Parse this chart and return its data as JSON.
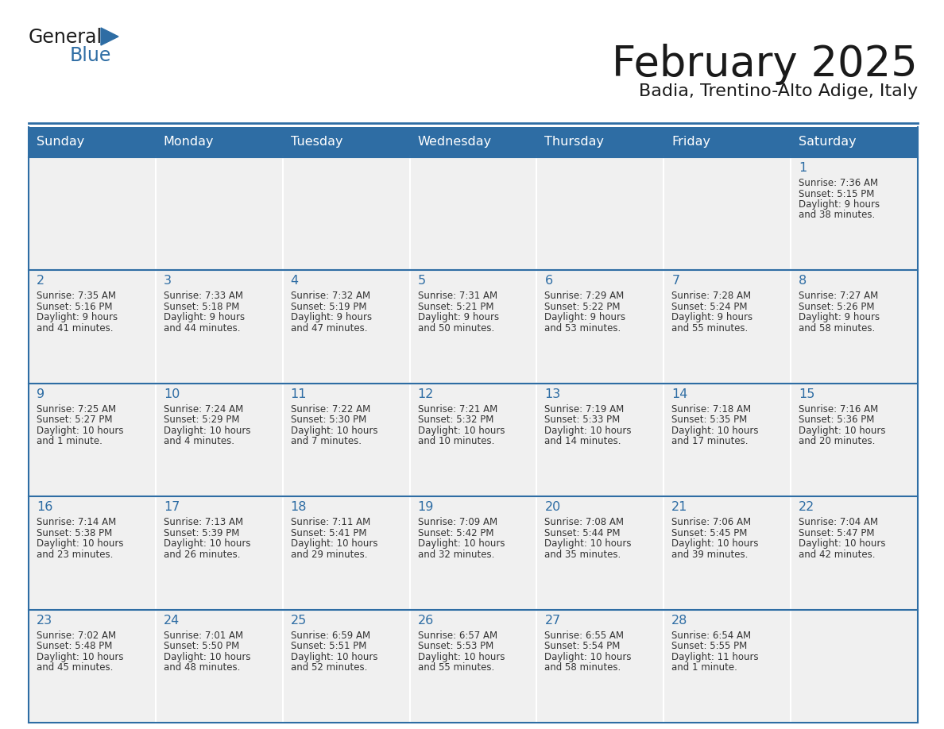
{
  "title": "February 2025",
  "subtitle": "Badia, Trentino-Alto Adige, Italy",
  "days_of_week": [
    "Sunday",
    "Monday",
    "Tuesday",
    "Wednesday",
    "Thursday",
    "Friday",
    "Saturday"
  ],
  "header_bg": "#2E6DA4",
  "header_text": "#FFFFFF",
  "cell_bg": "#F0F0F0",
  "border_color": "#2E6DA4",
  "day_num_color": "#2E6DA4",
  "cell_text_color": "#333333",
  "logo_general_color": "#1a1a1a",
  "logo_blue_color": "#2E6DA4",
  "weeks": [
    [
      null,
      null,
      null,
      null,
      null,
      null,
      1
    ],
    [
      2,
      3,
      4,
      5,
      6,
      7,
      8
    ],
    [
      9,
      10,
      11,
      12,
      13,
      14,
      15
    ],
    [
      16,
      17,
      18,
      19,
      20,
      21,
      22
    ],
    [
      23,
      24,
      25,
      26,
      27,
      28,
      null
    ]
  ],
  "cell_data": {
    "1": {
      "sunrise": "7:36 AM",
      "sunset": "5:15 PM",
      "daylight": "9 hours\nand 38 minutes."
    },
    "2": {
      "sunrise": "7:35 AM",
      "sunset": "5:16 PM",
      "daylight": "9 hours\nand 41 minutes."
    },
    "3": {
      "sunrise": "7:33 AM",
      "sunset": "5:18 PM",
      "daylight": "9 hours\nand 44 minutes."
    },
    "4": {
      "sunrise": "7:32 AM",
      "sunset": "5:19 PM",
      "daylight": "9 hours\nand 47 minutes."
    },
    "5": {
      "sunrise": "7:31 AM",
      "sunset": "5:21 PM",
      "daylight": "9 hours\nand 50 minutes."
    },
    "6": {
      "sunrise": "7:29 AM",
      "sunset": "5:22 PM",
      "daylight": "9 hours\nand 53 minutes."
    },
    "7": {
      "sunrise": "7:28 AM",
      "sunset": "5:24 PM",
      "daylight": "9 hours\nand 55 minutes."
    },
    "8": {
      "sunrise": "7:27 AM",
      "sunset": "5:26 PM",
      "daylight": "9 hours\nand 58 minutes."
    },
    "9": {
      "sunrise": "7:25 AM",
      "sunset": "5:27 PM",
      "daylight": "10 hours\nand 1 minute."
    },
    "10": {
      "sunrise": "7:24 AM",
      "sunset": "5:29 PM",
      "daylight": "10 hours\nand 4 minutes."
    },
    "11": {
      "sunrise": "7:22 AM",
      "sunset": "5:30 PM",
      "daylight": "10 hours\nand 7 minutes."
    },
    "12": {
      "sunrise": "7:21 AM",
      "sunset": "5:32 PM",
      "daylight": "10 hours\nand 10 minutes."
    },
    "13": {
      "sunrise": "7:19 AM",
      "sunset": "5:33 PM",
      "daylight": "10 hours\nand 14 minutes."
    },
    "14": {
      "sunrise": "7:18 AM",
      "sunset": "5:35 PM",
      "daylight": "10 hours\nand 17 minutes."
    },
    "15": {
      "sunrise": "7:16 AM",
      "sunset": "5:36 PM",
      "daylight": "10 hours\nand 20 minutes."
    },
    "16": {
      "sunrise": "7:14 AM",
      "sunset": "5:38 PM",
      "daylight": "10 hours\nand 23 minutes."
    },
    "17": {
      "sunrise": "7:13 AM",
      "sunset": "5:39 PM",
      "daylight": "10 hours\nand 26 minutes."
    },
    "18": {
      "sunrise": "7:11 AM",
      "sunset": "5:41 PM",
      "daylight": "10 hours\nand 29 minutes."
    },
    "19": {
      "sunrise": "7:09 AM",
      "sunset": "5:42 PM",
      "daylight": "10 hours\nand 32 minutes."
    },
    "20": {
      "sunrise": "7:08 AM",
      "sunset": "5:44 PM",
      "daylight": "10 hours\nand 35 minutes."
    },
    "21": {
      "sunrise": "7:06 AM",
      "sunset": "5:45 PM",
      "daylight": "10 hours\nand 39 minutes."
    },
    "22": {
      "sunrise": "7:04 AM",
      "sunset": "5:47 PM",
      "daylight": "10 hours\nand 42 minutes."
    },
    "23": {
      "sunrise": "7:02 AM",
      "sunset": "5:48 PM",
      "daylight": "10 hours\nand 45 minutes."
    },
    "24": {
      "sunrise": "7:01 AM",
      "sunset": "5:50 PM",
      "daylight": "10 hours\nand 48 minutes."
    },
    "25": {
      "sunrise": "6:59 AM",
      "sunset": "5:51 PM",
      "daylight": "10 hours\nand 52 minutes."
    },
    "26": {
      "sunrise": "6:57 AM",
      "sunset": "5:53 PM",
      "daylight": "10 hours\nand 55 minutes."
    },
    "27": {
      "sunrise": "6:55 AM",
      "sunset": "5:54 PM",
      "daylight": "10 hours\nand 58 minutes."
    },
    "28": {
      "sunrise": "6:54 AM",
      "sunset": "5:55 PM",
      "daylight": "11 hours\nand 1 minute."
    }
  }
}
